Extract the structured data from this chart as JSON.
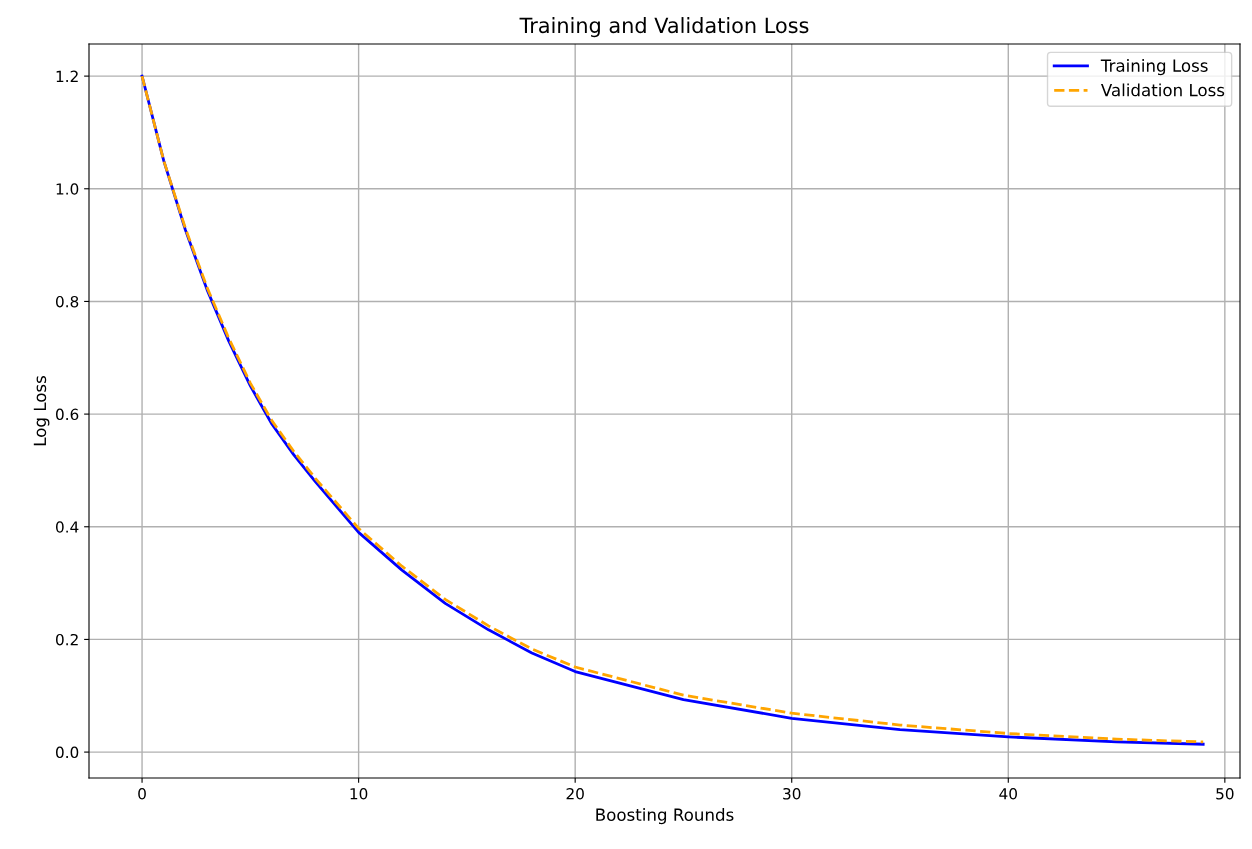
{
  "chart_data": {
    "type": "line",
    "title": "Training and Validation Loss",
    "xlabel": "Boosting Rounds",
    "ylabel": "Log Loss",
    "x": [
      0,
      1,
      2,
      3,
      4,
      5,
      6,
      7,
      8,
      10,
      12,
      14,
      16,
      18,
      20,
      25,
      30,
      35,
      40,
      45,
      49
    ],
    "series": [
      {
        "name": "Training Loss",
        "color": "#0000ff",
        "line_style": "solid",
        "values": [
          1.2,
          1.05,
          0.927,
          0.821,
          0.73,
          0.65,
          0.582,
          0.528,
          0.48,
          0.39,
          0.323,
          0.264,
          0.217,
          0.176,
          0.143,
          0.093,
          0.06,
          0.04,
          0.027,
          0.018,
          0.014
        ]
      },
      {
        "name": "Validation Loss",
        "color": "#ffa500",
        "line_style": "dashed",
        "values": [
          1.2,
          1.05,
          0.93,
          0.825,
          0.735,
          0.655,
          0.588,
          0.534,
          0.486,
          0.397,
          0.33,
          0.271,
          0.224,
          0.183,
          0.151,
          0.101,
          0.069,
          0.048,
          0.033,
          0.023,
          0.018
        ]
      }
    ],
    "xlim": [
      -2.45,
      50.7
    ],
    "ylim": [
      -0.046,
      1.257
    ],
    "xticks": [
      0,
      10,
      20,
      30,
      40,
      50
    ],
    "yticks": [
      {
        "value": 0,
        "label": "0.0"
      },
      {
        "value": 0.2,
        "label": "0.2"
      },
      {
        "value": 0.4,
        "label": "0.4"
      },
      {
        "value": 0.6,
        "label": "0.6"
      },
      {
        "value": 0.8,
        "label": "0.8"
      },
      {
        "value": 1.0,
        "label": "1.0"
      },
      {
        "value": 1.2,
        "label": "1.2"
      }
    ],
    "grid": true,
    "legend": "top right"
  }
}
